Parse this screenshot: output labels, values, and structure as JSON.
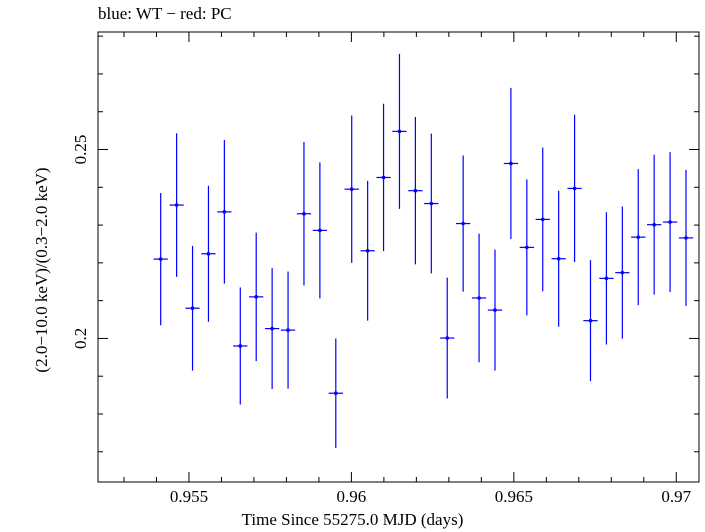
{
  "chart_data": {
    "type": "scatter",
    "title": "blue: WT − red: PC",
    "xlabel": "Time Since 55275.0 MJD (days)",
    "ylabel": "(2.0−10.0 keV)/(0.3−2.0 keV)",
    "xlim": [
      0.9522,
      0.9707
    ],
    "ylim": [
      0.162,
      0.2811
    ],
    "x_ticks": [
      0.955,
      0.96,
      0.965,
      0.97
    ],
    "x_tick_labels": [
      "0.955",
      "0.96",
      "0.965",
      "0.97"
    ],
    "y_ticks": [
      0.2,
      0.25
    ],
    "y_tick_labels": [
      "0.2",
      "0.25"
    ],
    "grid": false,
    "series": [
      {
        "name": "WT",
        "color": "#0000ff",
        "x": [
          0.95413,
          0.95462,
          0.95511,
          0.9556,
          0.95609,
          0.95658,
          0.95707,
          0.95756,
          0.95805,
          0.95854,
          0.95903,
          0.95952,
          0.96001,
          0.9605,
          0.96099,
          0.96148,
          0.96197,
          0.96246,
          0.96295,
          0.96344,
          0.96393,
          0.96442,
          0.96491,
          0.9654,
          0.96589,
          0.96638,
          0.96687,
          0.96736,
          0.96785,
          0.96834,
          0.96883,
          0.96932,
          0.96981,
          0.9703
        ],
        "y": [
          0.221,
          0.2353,
          0.208,
          0.2224,
          0.2335,
          0.198,
          0.211,
          0.2026,
          0.2022,
          0.233,
          0.2286,
          0.1855,
          0.2395,
          0.2232,
          0.2426,
          0.2548,
          0.2391,
          0.2357,
          0.2001,
          0.2304,
          0.2107,
          0.2075,
          0.2463,
          0.2241,
          0.2315,
          0.2211,
          0.2397,
          0.2047,
          0.2159,
          0.2174,
          0.2268,
          0.2301,
          0.2308,
          0.2266
        ],
        "yerr": [
          0.0175,
          0.019,
          0.0165,
          0.018,
          0.019,
          0.0155,
          0.017,
          0.016,
          0.0155,
          0.019,
          0.018,
          0.0145,
          0.0195,
          0.0185,
          0.0195,
          0.0205,
          0.0195,
          0.0185,
          0.016,
          0.018,
          0.017,
          0.016,
          0.02,
          0.018,
          0.019,
          0.018,
          0.0195,
          0.016,
          0.0175,
          0.0175,
          0.018,
          0.0185,
          0.0185,
          0.018
        ],
        "xerr": 0.00022
      }
    ]
  }
}
